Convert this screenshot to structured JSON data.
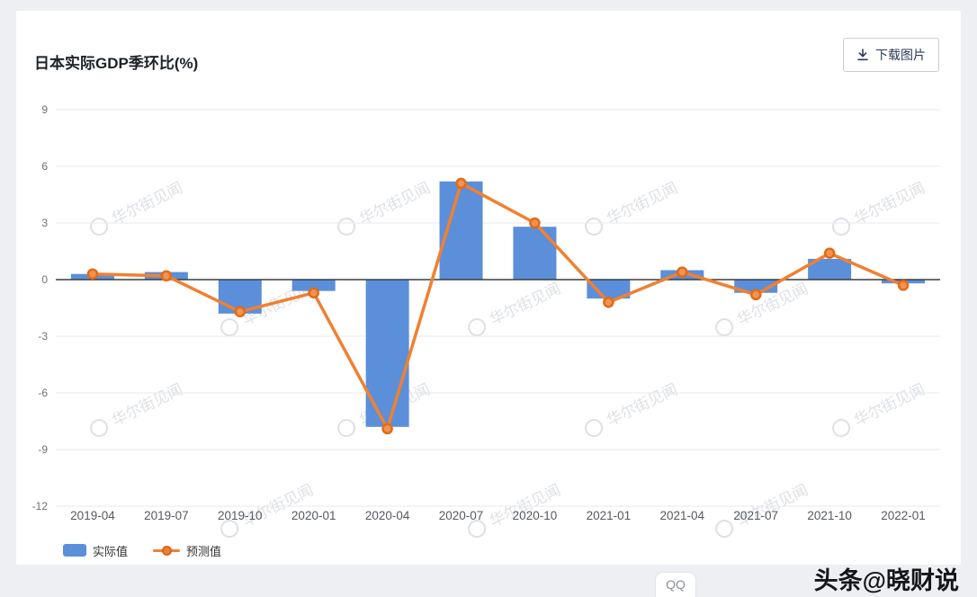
{
  "header": {
    "title": "日本实际GDP季环比(%)",
    "download_label": "下载图片"
  },
  "legend": [
    {
      "label": "实际值",
      "color": "#5b8fd9"
    },
    {
      "label": "预测值",
      "color": "#f08031"
    }
  ],
  "footer": {
    "byline": "头条@晓财说",
    "qq_label": "QQ"
  },
  "chart_data": {
    "type": "bar",
    "title": "日本实际GDP季环比(%)",
    "categories": [
      "2019-04",
      "2019-07",
      "2019-10",
      "2020-01",
      "2020-04",
      "2020-07",
      "2020-10",
      "2021-01",
      "2021-04",
      "2021-07",
      "2021-10",
      "2022-01"
    ],
    "series": [
      {
        "name": "实际值",
        "type": "bar",
        "color": "#5b8fd9",
        "values": [
          0.3,
          0.4,
          -1.8,
          -0.6,
          -7.8,
          5.2,
          2.8,
          -1.0,
          0.5,
          -0.7,
          1.1,
          -0.2
        ]
      },
      {
        "name": "预测值",
        "type": "line",
        "color": "#f08031",
        "values": [
          0.3,
          0.2,
          -1.7,
          -0.7,
          -7.9,
          5.1,
          3.0,
          -1.2,
          0.4,
          -0.8,
          1.4,
          -0.3
        ]
      }
    ],
    "ylim": [
      -12,
      9
    ],
    "yticks": [
      9,
      6,
      3,
      0,
      -3,
      -6,
      -9,
      -12
    ],
    "grid": true,
    "legend_position": "bottom-left",
    "watermark": "华尔街见闻"
  }
}
